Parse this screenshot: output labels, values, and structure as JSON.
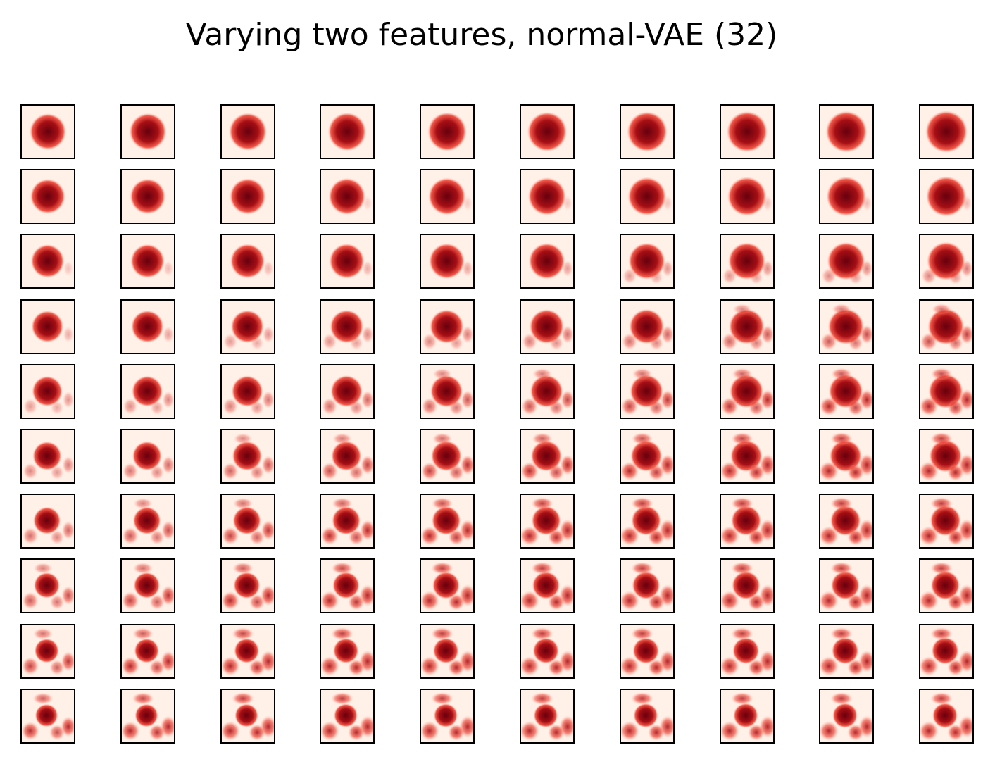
{
  "figure": {
    "title": "Varying two features, normal-VAE (32)",
    "grid_rows": 10,
    "grid_cols": 10,
    "colormap": "Reds",
    "background_color": "#fff0e8",
    "blob_colors": {
      "light": "#fcbba1",
      "mid": "#ef3b2c",
      "dark": "#a50f15",
      "darkest": "#67000d"
    }
  }
}
